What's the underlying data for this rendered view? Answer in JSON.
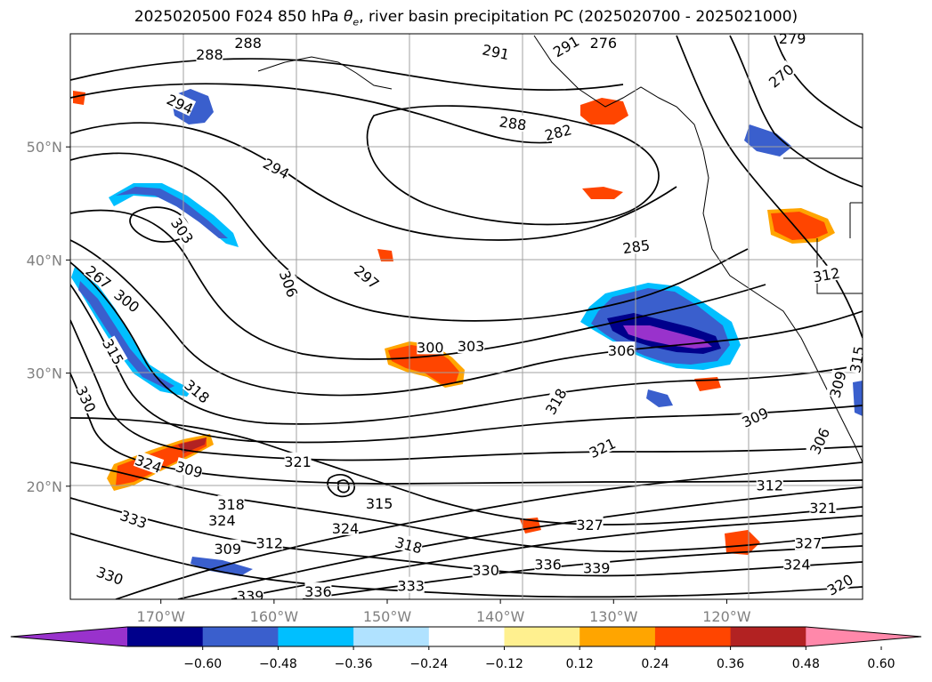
{
  "title": {
    "prefix": "2025020500 F024 850 hPa ",
    "symbol": "θ",
    "subscript": "e",
    "suffix": ", river basin precipitation PC (2025020700 - 2025021000)"
  },
  "map": {
    "lon_range": [
      -178,
      -108
    ],
    "lat_range": [
      10,
      60
    ],
    "projection": "equirectangular",
    "grid": true,
    "latitude_labels": [
      {
        "lat": 50,
        "label": "50°N"
      },
      {
        "lat": 40,
        "label": "40°N"
      },
      {
        "lat": 30,
        "label": "30°N"
      },
      {
        "lat": 20,
        "label": "20°N"
      }
    ],
    "longitude_labels": [
      {
        "lon": -170,
        "label": "170°W"
      },
      {
        "lon": -160,
        "label": "160°W"
      },
      {
        "lon": -150,
        "label": "150°W"
      },
      {
        "lon": -140,
        "label": "140°W"
      },
      {
        "lon": -130,
        "label": "130°W"
      },
      {
        "lon": -120,
        "label": "120°W"
      }
    ],
    "contour_labels": [
      {
        "lon": -165.7,
        "lat": 58.2,
        "label": "288",
        "rotate": 0
      },
      {
        "lon": -162.3,
        "lat": 59.2,
        "label": "288",
        "rotate": 0
      },
      {
        "lon": -140.4,
        "lat": 58.4,
        "label": "291",
        "rotate": 12
      },
      {
        "lon": -134.2,
        "lat": 58.9,
        "label": "291",
        "rotate": -30
      },
      {
        "lon": -130.9,
        "lat": 59.2,
        "label": "276",
        "rotate": 0
      },
      {
        "lon": -114.2,
        "lat": 59.6,
        "label": "279",
        "rotate": 0
      },
      {
        "lon": -115.2,
        "lat": 56.3,
        "label": "270",
        "rotate": -40
      },
      {
        "lon": -168.3,
        "lat": 53.8,
        "label": "294",
        "rotate": 25
      },
      {
        "lon": -138.9,
        "lat": 52.1,
        "label": "288",
        "rotate": 8
      },
      {
        "lon": -134.9,
        "lat": 51.3,
        "label": "282",
        "rotate": -14
      },
      {
        "lon": -159.8,
        "lat": 48.1,
        "label": "294",
        "rotate": 28
      },
      {
        "lon": -168.1,
        "lat": 42.6,
        "label": "303",
        "rotate": 55
      },
      {
        "lon": -128.0,
        "lat": 41.2,
        "label": "285",
        "rotate": -8
      },
      {
        "lon": -175.5,
        "lat": 38.5,
        "label": "267",
        "rotate": 38
      },
      {
        "lon": -173.0,
        "lat": 36.4,
        "label": "300",
        "rotate": 38
      },
      {
        "lon": -158.7,
        "lat": 37.9,
        "label": "306",
        "rotate": 70
      },
      {
        "lon": -151.8,
        "lat": 38.5,
        "label": "297",
        "rotate": 40
      },
      {
        "lon": -111.2,
        "lat": 38.7,
        "label": "312",
        "rotate": -10
      },
      {
        "lon": -146.2,
        "lat": 32.3,
        "label": "300",
        "rotate": 0
      },
      {
        "lon": -142.6,
        "lat": 32.4,
        "label": "303",
        "rotate": 0
      },
      {
        "lon": -129.3,
        "lat": 32.0,
        "label": "306",
        "rotate": 0
      },
      {
        "lon": -174.2,
        "lat": 31.9,
        "label": "315",
        "rotate": 60
      },
      {
        "lon": -176.6,
        "lat": 27.7,
        "label": "330",
        "rotate": 65
      },
      {
        "lon": -166.8,
        "lat": 28.4,
        "label": "318",
        "rotate": 40
      },
      {
        "lon": -135.1,
        "lat": 27.5,
        "label": "318",
        "rotate": -60
      },
      {
        "lon": -110.2,
        "lat": 29.0,
        "label": "309",
        "rotate": -75
      },
      {
        "lon": -108.5,
        "lat": 31.2,
        "label": "315",
        "rotate": -80
      },
      {
        "lon": -117.5,
        "lat": 26.1,
        "label": "309",
        "rotate": -25
      },
      {
        "lon": -111.8,
        "lat": 24.0,
        "label": "306",
        "rotate": -65
      },
      {
        "lon": -131.0,
        "lat": 23.4,
        "label": "321",
        "rotate": -25
      },
      {
        "lon": -157.9,
        "lat": 22.2,
        "label": "321",
        "rotate": 0
      },
      {
        "lon": -171.1,
        "lat": 22.0,
        "label": "324",
        "rotate": 20
      },
      {
        "lon": -167.5,
        "lat": 21.5,
        "label": "309",
        "rotate": 15
      },
      {
        "lon": -116.2,
        "lat": 20.1,
        "label": "312",
        "rotate": 0
      },
      {
        "lon": -111.5,
        "lat": 18.1,
        "label": "321",
        "rotate": 0
      },
      {
        "lon": -163.8,
        "lat": 18.4,
        "label": "318",
        "rotate": 0
      },
      {
        "lon": -164.6,
        "lat": 17.0,
        "label": "324",
        "rotate": 0
      },
      {
        "lon": -172.4,
        "lat": 17.1,
        "label": "333",
        "rotate": 20
      },
      {
        "lon": -150.7,
        "lat": 18.5,
        "label": "315",
        "rotate": 0
      },
      {
        "lon": -153.7,
        "lat": 16.3,
        "label": "324",
        "rotate": 0
      },
      {
        "lon": -160.4,
        "lat": 15.0,
        "label": "312",
        "rotate": 0
      },
      {
        "lon": -164.1,
        "lat": 14.5,
        "label": "309",
        "rotate": 0
      },
      {
        "lon": -132.1,
        "lat": 16.6,
        "label": "327",
        "rotate": 0
      },
      {
        "lon": -148.1,
        "lat": 14.8,
        "label": "318",
        "rotate": 15
      },
      {
        "lon": -112.8,
        "lat": 15.0,
        "label": "327",
        "rotate": 0
      },
      {
        "lon": -113.8,
        "lat": 13.1,
        "label": "324",
        "rotate": 0
      },
      {
        "lon": -174.5,
        "lat": 12.1,
        "label": "330",
        "rotate": 20
      },
      {
        "lon": -141.3,
        "lat": 12.6,
        "label": "330",
        "rotate": 0
      },
      {
        "lon": -135.8,
        "lat": 13.1,
        "label": "336",
        "rotate": 0
      },
      {
        "lon": -131.5,
        "lat": 12.8,
        "label": "339",
        "rotate": 0
      },
      {
        "lon": -162.1,
        "lat": 10.3,
        "label": "339",
        "rotate": 0
      },
      {
        "lon": -156.1,
        "lat": 10.7,
        "label": "336",
        "rotate": 0
      },
      {
        "lon": -147.9,
        "lat": 11.2,
        "label": "333",
        "rotate": 0
      },
      {
        "lon": -110.0,
        "lat": 11.3,
        "label": "320",
        "rotate": -30
      }
    ]
  },
  "colorbar": {
    "colors": [
      "#9932cc",
      "#00008b",
      "#3a5fcd",
      "#00bfff",
      "#b0e2ff",
      "#ffffff",
      "#fff08f",
      "#ffa500",
      "#ff4500",
      "#b22222",
      "#ff88aa"
    ],
    "ticks": [
      "−0.60",
      "−0.48",
      "−0.36",
      "−0.24",
      "−0.12",
      "0.12",
      "0.24",
      "0.36",
      "0.48",
      "0.60"
    ]
  }
}
